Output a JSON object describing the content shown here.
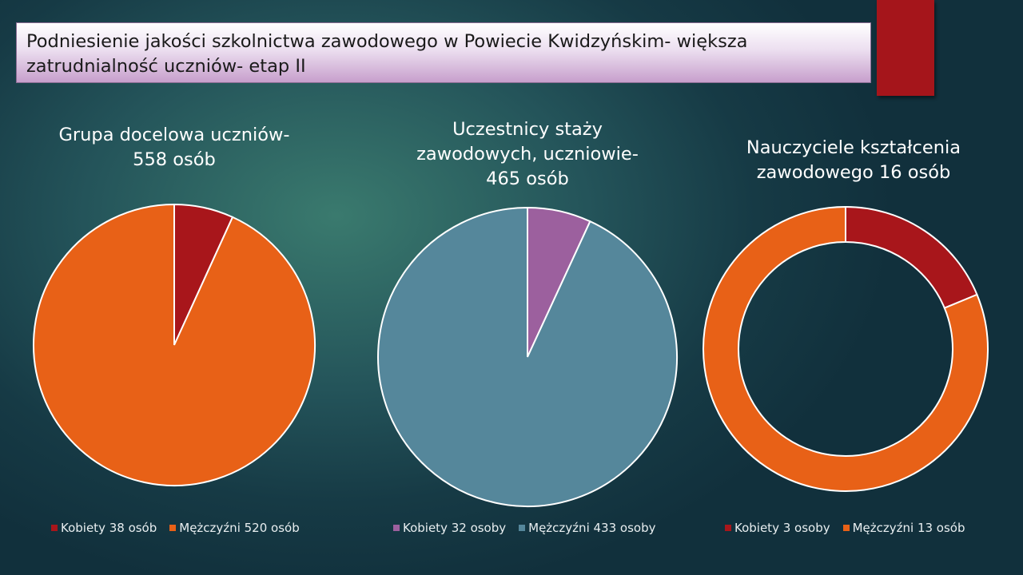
{
  "slide": {
    "title": "Podniesienie jakości szkolnictwa zawodowego w Powiecie Kwidzyńskim- większa zatrudnialność uczniów- etap II"
  },
  "colors": {
    "red": "#a8161b",
    "orange": "#e86117",
    "purple": "#9c609e",
    "slate": "#55879b"
  },
  "chart_data": [
    {
      "type": "pie",
      "title": "Grupa docelowa uczniów- 558 osób",
      "categories": [
        "Kobiety 38 osób",
        "Mężczyźni 520 osób"
      ],
      "values": [
        38,
        520
      ],
      "colors": [
        "#a8161b",
        "#e86117"
      ],
      "legend": "bottom"
    },
    {
      "type": "pie",
      "title": "Uczestnicy staży zawodowych, uczniowie- 465 osób",
      "categories": [
        "Kobiety 32 osoby",
        "Mężczyźni 433 osoby"
      ],
      "values": [
        32,
        433
      ],
      "colors": [
        "#9c609e",
        "#55879b"
      ],
      "legend": "bottom"
    },
    {
      "type": "pie",
      "subtype": "doughnut",
      "title": "Nauczyciele kształcenia zawodowego 16 osób",
      "categories": [
        "Kobiety 3 osoby",
        "Mężczyźni 13 osób"
      ],
      "values": [
        3,
        13
      ],
      "colors": [
        "#a8161b",
        "#e86117"
      ],
      "legend": "bottom"
    }
  ]
}
